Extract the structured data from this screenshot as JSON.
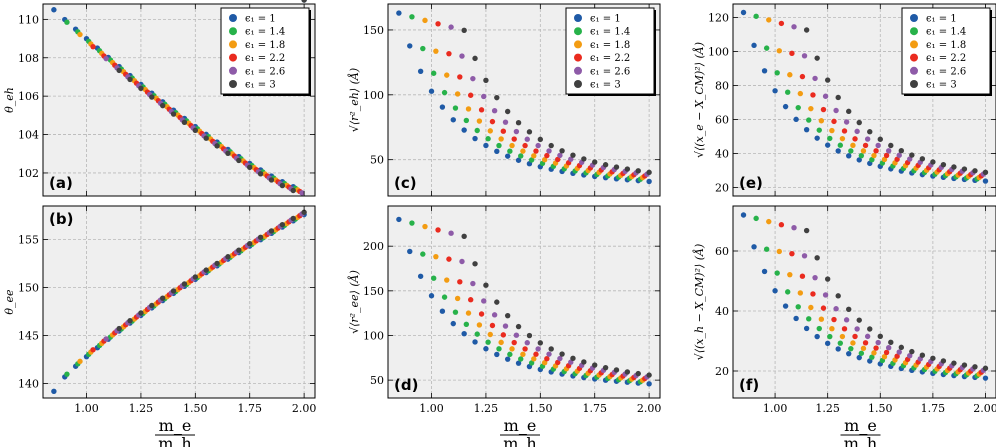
{
  "figure": {
    "x_label_top": "m_e",
    "x_label_bottom": "m_h",
    "series_colors": [
      "#1f5aa6",
      "#27b24a",
      "#f39c12",
      "#ea2b1f",
      "#8e5ba8",
      "#404040"
    ],
    "legend_labels": [
      "ϵ₁ = 1",
      "ϵ₁ = 1.4",
      "ϵ₁ = 1.8",
      "ϵ₁ = 2.2",
      "ϵ₁ = 2.6",
      "ϵ₁ = 3"
    ]
  },
  "chart_data": [
    {
      "id": "a",
      "type": "scatter",
      "panel_label": "(a)",
      "ylabel": "θ_eh",
      "xlim": [
        0.8,
        2.05
      ],
      "ylim": [
        100.8,
        110.8
      ],
      "xticks": [
        1.0,
        1.25,
        1.5,
        1.75,
        2.0
      ],
      "xtick_labels": [
        "1.00",
        "1.25",
        "1.50",
        "1.75",
        "2.00"
      ],
      "yticks": [
        102,
        104,
        106,
        108,
        110
      ],
      "ytick_labels": [
        "102",
        "104",
        "106",
        "108",
        "110"
      ],
      "legend": true,
      "model": "theta_eh"
    },
    {
      "id": "b",
      "type": "scatter",
      "panel_label": "(b)",
      "ylabel": "θ_ee",
      "xlim": [
        0.8,
        2.05
      ],
      "ylim": [
        138.5,
        158.5
      ],
      "xticks": [
        1.0,
        1.25,
        1.5,
        1.75,
        2.0
      ],
      "xtick_labels": [
        "1.00",
        "1.25",
        "1.50",
        "1.75",
        "2.00"
      ],
      "yticks": [
        140,
        145,
        150,
        155
      ],
      "ytick_labels": [
        "140",
        "145",
        "150",
        "155"
      ],
      "legend": false,
      "model": "theta_ee"
    },
    {
      "id": "c",
      "type": "scatter",
      "panel_label": "(c)",
      "ylabel": "√⟨r²_eh⟩ (Å)",
      "xlim": [
        0.8,
        2.05
      ],
      "ylim": [
        22,
        170
      ],
      "xticks": [
        1.0,
        1.25,
        1.5,
        1.75,
        2.0
      ],
      "xtick_labels": [
        "1.00",
        "1.25",
        "1.50",
        "1.75",
        "2.00"
      ],
      "yticks": [
        50,
        100,
        150
      ],
      "ytick_labels": [
        "50",
        "100",
        "150"
      ],
      "legend": true,
      "model": "decay",
      "A": 163,
      "B": 27
    },
    {
      "id": "d",
      "type": "scatter",
      "panel_label": "(d)",
      "ylabel": "√⟨r²_ee⟩ (Å)",
      "xlim": [
        0.8,
        2.05
      ],
      "ylim": [
        30,
        245
      ],
      "xticks": [
        1.0,
        1.25,
        1.5,
        1.75,
        2.0
      ],
      "xtick_labels": [
        "1.00",
        "1.25",
        "1.50",
        "1.75",
        "2.00"
      ],
      "yticks": [
        50,
        100,
        150,
        200
      ],
      "ytick_labels": [
        "50",
        "100",
        "150",
        "200"
      ],
      "legend": false,
      "model": "decay",
      "A": 230,
      "B": 37
    },
    {
      "id": "e",
      "type": "scatter",
      "panel_label": "(e)",
      "ylabel": "√⟨(x_e − X_CM)²⟩ (Å)",
      "xlim": [
        0.8,
        2.05
      ],
      "ylim": [
        15,
        128
      ],
      "xticks": [
        1.0,
        1.25,
        1.5,
        1.75,
        2.0
      ],
      "xtick_labels": [
        "1.00",
        "1.25",
        "1.50",
        "1.75",
        "2.00"
      ],
      "yticks": [
        20,
        40,
        60,
        80,
        100,
        120
      ],
      "ytick_labels": [
        "20",
        "40",
        "60",
        "80",
        "100",
        "120"
      ],
      "legend": true,
      "model": "decay",
      "A": 123,
      "B": 19
    },
    {
      "id": "f",
      "type": "scatter",
      "panel_label": "(f)",
      "ylabel": "√⟨(x_h − X_CM)²⟩ (Å)",
      "xlim": [
        0.8,
        2.05
      ],
      "ylim": [
        11,
        75
      ],
      "xticks": [
        1.0,
        1.25,
        1.5,
        1.75,
        2.0
      ],
      "xtick_labels": [
        "1.00",
        "1.25",
        "1.50",
        "1.75",
        "2.00"
      ],
      "yticks": [
        20,
        40,
        60
      ],
      "ytick_labels": [
        "20",
        "40",
        "60"
      ],
      "legend": false,
      "model": "decay",
      "A": 72,
      "B": 15
    }
  ]
}
